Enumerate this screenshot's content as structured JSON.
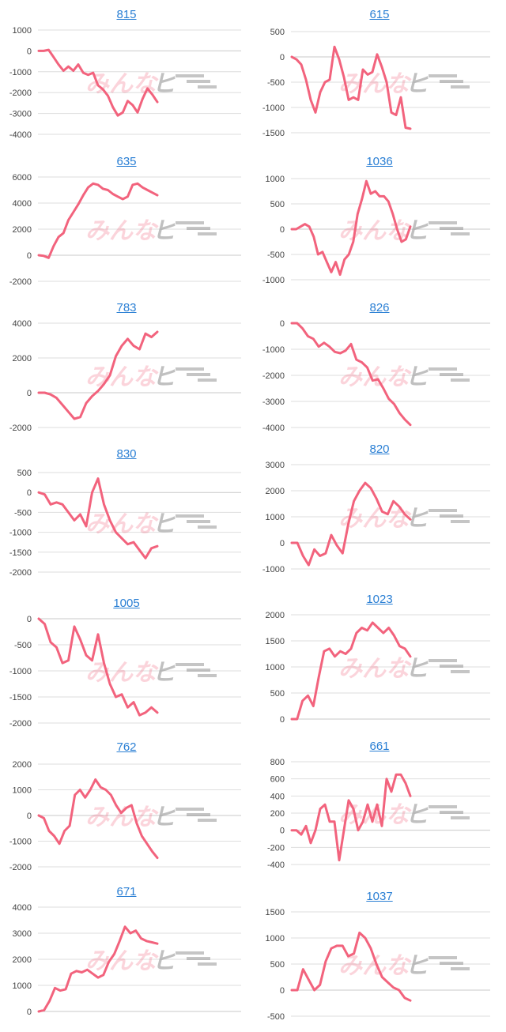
{
  "watermark": {
    "part1": "みんな",
    "part2": "ヒ"
  },
  "chart_data": [
    {
      "type": "line",
      "title": "815",
      "yticks": [
        1000,
        0,
        -1000,
        -2000,
        -3000,
        -4000
      ],
      "ylim": [
        -4000,
        1000
      ],
      "values": [
        0,
        0,
        50,
        -300,
        -650,
        -950,
        -750,
        -950,
        -650,
        -1050,
        -1150,
        -1050,
        -1650,
        -1850,
        -2150,
        -2700,
        -3100,
        -2950,
        -2400,
        -2600,
        -2950,
        -2300,
        -1800,
        -2100,
        -2450
      ]
    },
    {
      "type": "line",
      "title": "615",
      "yticks": [
        500,
        0,
        -500,
        -1000,
        -1500
      ],
      "ylim": [
        -1500,
        500
      ],
      "values": [
        0,
        -50,
        -150,
        -450,
        -850,
        -1100,
        -700,
        -500,
        -450,
        200,
        -50,
        -400,
        -850,
        -800,
        -850,
        -250,
        -350,
        -300,
        50,
        -200,
        -500,
        -1100,
        -1150,
        -800,
        -1400,
        -1420
      ]
    },
    {
      "type": "line",
      "title": "635",
      "yticks": [
        6000,
        4000,
        2000,
        0,
        -2000
      ],
      "ylim": [
        -2000,
        6000
      ],
      "values": [
        0,
        -50,
        -200,
        700,
        1400,
        1700,
        2700,
        3300,
        3900,
        4600,
        5200,
        5500,
        5400,
        5100,
        5000,
        4700,
        4500,
        4300,
        4500,
        5400,
        5500,
        5200,
        5000,
        4800,
        4600
      ]
    },
    {
      "type": "line",
      "title": "1036",
      "yticks": [
        1000,
        500,
        0,
        -500,
        -1000
      ],
      "ylim": [
        -1000,
        1000
      ],
      "values": [
        0,
        0,
        50,
        100,
        50,
        -150,
        -500,
        -450,
        -650,
        -850,
        -650,
        -900,
        -600,
        -500,
        -250,
        300,
        600,
        950,
        700,
        750,
        650,
        650,
        550,
        300,
        0,
        -250,
        -200,
        50
      ]
    },
    {
      "type": "line",
      "title": "783",
      "yticks": [
        4000,
        2000,
        0,
        -2000
      ],
      "ylim": [
        -2000,
        4000
      ],
      "values": [
        0,
        0,
        -100,
        -300,
        -700,
        -1100,
        -1500,
        -1400,
        -600,
        -200,
        100,
        500,
        1000,
        2100,
        2700,
        3100,
        2700,
        2500,
        3400,
        3200,
        3500
      ]
    },
    {
      "type": "line",
      "title": "826",
      "yticks": [
        0,
        -1000,
        -2000,
        -3000,
        -4000
      ],
      "ylim": [
        -4000,
        0
      ],
      "values": [
        0,
        0,
        -200,
        -500,
        -600,
        -900,
        -750,
        -900,
        -1100,
        -1150,
        -1050,
        -800,
        -1400,
        -1500,
        -1700,
        -2200,
        -2150,
        -2500,
        -2900,
        -3100,
        -3450,
        -3700,
        -3900
      ]
    },
    {
      "type": "line",
      "title": "830",
      "yticks": [
        500,
        0,
        -500,
        -1000,
        -1500,
        -2000
      ],
      "ylim": [
        -2000,
        500
      ],
      "values": [
        0,
        -50,
        -300,
        -250,
        -300,
        -500,
        -700,
        -550,
        -850,
        0,
        350,
        -300,
        -700,
        -1000,
        -1150,
        -1300,
        -1250,
        -1450,
        -1650,
        -1400,
        -1350
      ]
    },
    {
      "type": "line",
      "title": "820",
      "yticks": [
        3000,
        2000,
        1000,
        0,
        -1000
      ],
      "ylim": [
        -1000,
        3000
      ],
      "values": [
        0,
        0,
        -500,
        -850,
        -250,
        -500,
        -400,
        300,
        -100,
        -400,
        700,
        1600,
        2000,
        2300,
        2100,
        1700,
        1200,
        1100,
        1600,
        1400,
        1100,
        900
      ]
    },
    {
      "type": "line",
      "title": "1005",
      "yticks": [
        0,
        -500,
        -1000,
        -1500,
        -2000
      ],
      "ylim": [
        -2000,
        0
      ],
      "values": [
        0,
        -100,
        -450,
        -550,
        -850,
        -800,
        -150,
        -400,
        -700,
        -800,
        -300,
        -850,
        -1250,
        -1500,
        -1450,
        -1700,
        -1600,
        -1850,
        -1800,
        -1700,
        -1800
      ]
    },
    {
      "type": "line",
      "title": "1023",
      "yticks": [
        2000,
        1500,
        1000,
        500,
        0
      ],
      "ylim": [
        0,
        2000
      ],
      "values": [
        0,
        0,
        350,
        450,
        250,
        800,
        1300,
        1350,
        1200,
        1300,
        1250,
        1350,
        1650,
        1750,
        1700,
        1850,
        1750,
        1650,
        1750,
        1600,
        1400,
        1350,
        1200
      ]
    },
    {
      "type": "line",
      "title": "762",
      "yticks": [
        2000,
        1000,
        0,
        -1000,
        -2000
      ],
      "ylim": [
        -2000,
        2000
      ],
      "values": [
        0,
        -100,
        -600,
        -800,
        -1100,
        -600,
        -400,
        800,
        1000,
        700,
        1000,
        1400,
        1100,
        1000,
        800,
        400,
        100,
        300,
        400,
        -300,
        -800,
        -1100,
        -1400,
        -1650
      ]
    },
    {
      "type": "line",
      "title": "661",
      "yticks": [
        800,
        600,
        400,
        200,
        0,
        -200,
        -400
      ],
      "ylim": [
        -400,
        800
      ],
      "values": [
        0,
        0,
        -50,
        50,
        -150,
        0,
        250,
        300,
        100,
        100,
        -350,
        0,
        350,
        250,
        0,
        100,
        300,
        100,
        300,
        50,
        600,
        450,
        650,
        650,
        550,
        400
      ]
    },
    {
      "type": "line",
      "title": "671",
      "yticks": [
        4000,
        3000,
        2000,
        1000,
        0
      ],
      "ylim": [
        0,
        4000
      ],
      "values": [
        0,
        50,
        400,
        900,
        800,
        850,
        1450,
        1550,
        1500,
        1600,
        1450,
        1300,
        1400,
        1900,
        2200,
        2700,
        3250,
        3000,
        3100,
        2800,
        2700,
        2650,
        2600
      ]
    },
    {
      "type": "line",
      "title": "1037",
      "yticks": [
        1500,
        1000,
        500,
        0,
        -500
      ],
      "ylim": [
        -500,
        1500
      ],
      "values": [
        0,
        0,
        400,
        200,
        0,
        100,
        550,
        800,
        850,
        850,
        650,
        700,
        1100,
        1000,
        800,
        500,
        250,
        150,
        50,
        0,
        -150,
        -200
      ]
    }
  ]
}
